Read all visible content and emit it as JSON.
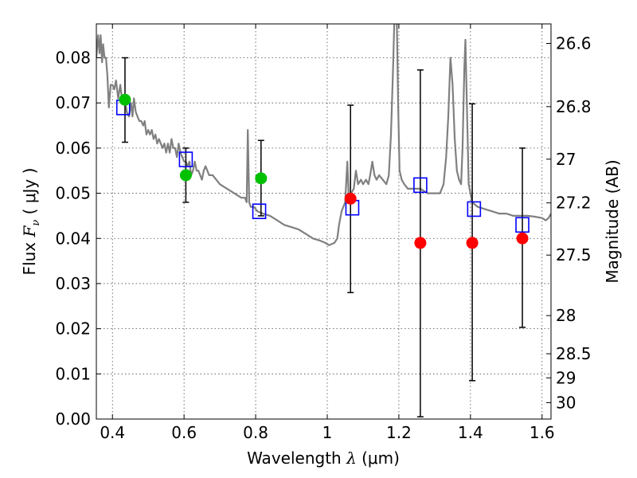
{
  "chart_data": {
    "type": "scatter",
    "xlabel": "Wavelength  λ (μm)",
    "ylabel": "Flux  F_ν ( μJy )",
    "ylabel_parts": {
      "main": "Flux  ",
      "symbol": "F",
      "sub": "ν",
      "unit": "  ( μJy )"
    },
    "xlabel_parts": {
      "main": "Wavelength  ",
      "symbol": "λ",
      "unit": " (μm)"
    },
    "y2label": "Magnitude (AB)",
    "xlim": [
      0.355,
      1.625
    ],
    "ylim": [
      0.0,
      0.0875
    ],
    "grid": true,
    "xticks": [
      0.4,
      0.6,
      0.8,
      1.0,
      1.2,
      1.4,
      1.6
    ],
    "xtick_labels": [
      "0.4",
      "0.6",
      "0.8",
      "1",
      "1.2",
      "1.4",
      "1.6"
    ],
    "yticks": [
      0.0,
      0.01,
      0.02,
      0.03,
      0.04,
      0.05,
      0.06,
      0.07,
      0.08
    ],
    "ytick_labels": [
      "0.00",
      "0.01",
      "0.02",
      "0.03",
      "0.04",
      "0.05",
      "0.06",
      "0.07",
      "0.08"
    ],
    "y2ticks": [
      {
        "mag": 26.6,
        "label": "26.6"
      },
      {
        "mag": 26.8,
        "label": "26.8"
      },
      {
        "mag": 27.0,
        "label": "27"
      },
      {
        "mag": 27.2,
        "label": "27.2"
      },
      {
        "mag": 27.5,
        "label": "27.5"
      },
      {
        "mag": 28.0,
        "label": "28"
      },
      {
        "mag": 28.5,
        "label": "28.5"
      },
      {
        "mag": 29.0,
        "label": "29"
      },
      {
        "mag": 30.0,
        "label": "30"
      }
    ],
    "series": [
      {
        "kind": "line",
        "color": "#808080",
        "points": [
          [
            0.355,
            0.08
          ],
          [
            0.36,
            0.085
          ],
          [
            0.364,
            0.081
          ],
          [
            0.367,
            0.085
          ],
          [
            0.371,
            0.079
          ],
          [
            0.374,
            0.083
          ],
          [
            0.378,
            0.08
          ],
          [
            0.382,
            0.08
          ],
          [
            0.386,
            0.076
          ],
          [
            0.39,
            0.069
          ],
          [
            0.395,
            0.074
          ],
          [
            0.4,
            0.074
          ],
          [
            0.405,
            0.073
          ],
          [
            0.41,
            0.075
          ],
          [
            0.416,
            0.071
          ],
          [
            0.422,
            0.074
          ],
          [
            0.428,
            0.07
          ],
          [
            0.435,
            0.071
          ],
          [
            0.44,
            0.068
          ],
          [
            0.446,
            0.067
          ],
          [
            0.452,
            0.07
          ],
          [
            0.456,
            0.067
          ],
          [
            0.46,
            0.071
          ],
          [
            0.465,
            0.068
          ],
          [
            0.47,
            0.067
          ],
          [
            0.475,
            0.066
          ],
          [
            0.48,
            0.066
          ],
          [
            0.486,
            0.065
          ],
          [
            0.49,
            0.066
          ],
          [
            0.495,
            0.063
          ],
          [
            0.5,
            0.064
          ],
          [
            0.505,
            0.063
          ],
          [
            0.51,
            0.064
          ],
          [
            0.515,
            0.062
          ],
          [
            0.52,
            0.063
          ],
          [
            0.525,
            0.061
          ],
          [
            0.53,
            0.062
          ],
          [
            0.535,
            0.061
          ],
          [
            0.54,
            0.06
          ],
          [
            0.545,
            0.061
          ],
          [
            0.55,
            0.059
          ],
          [
            0.555,
            0.061
          ],
          [
            0.56,
            0.059
          ],
          [
            0.565,
            0.062
          ],
          [
            0.57,
            0.06
          ],
          [
            0.575,
            0.06
          ],
          [
            0.58,
            0.058
          ],
          [
            0.585,
            0.061
          ],
          [
            0.59,
            0.059
          ],
          [
            0.595,
            0.058
          ],
          [
            0.6,
            0.057
          ],
          [
            0.605,
            0.057
          ],
          [
            0.61,
            0.056
          ],
          [
            0.615,
            0.057
          ],
          [
            0.62,
            0.054
          ],
          [
            0.625,
            0.055
          ],
          [
            0.63,
            0.057
          ],
          [
            0.635,
            0.055
          ],
          [
            0.64,
            0.055
          ],
          [
            0.645,
            0.054
          ],
          [
            0.65,
            0.053
          ],
          [
            0.655,
            0.055
          ],
          [
            0.66,
            0.056
          ],
          [
            0.665,
            0.055
          ],
          [
            0.67,
            0.054
          ],
          [
            0.68,
            0.054
          ],
          [
            0.69,
            0.053
          ],
          [
            0.7,
            0.052
          ],
          [
            0.71,
            0.0515
          ],
          [
            0.72,
            0.051
          ],
          [
            0.73,
            0.0505
          ],
          [
            0.74,
            0.05
          ],
          [
            0.75,
            0.0495
          ],
          [
            0.76,
            0.049
          ],
          [
            0.77,
            0.049
          ],
          [
            0.775,
            0.048
          ],
          [
            0.778,
            0.064
          ],
          [
            0.782,
            0.048
          ],
          [
            0.786,
            0.047
          ],
          [
            0.795,
            0.047
          ],
          [
            0.805,
            0.046
          ],
          [
            0.82,
            0.0455
          ],
          [
            0.84,
            0.045
          ],
          [
            0.86,
            0.044
          ],
          [
            0.88,
            0.043
          ],
          [
            0.9,
            0.0425
          ],
          [
            0.92,
            0.042
          ],
          [
            0.94,
            0.041
          ],
          [
            0.96,
            0.04
          ],
          [
            0.98,
            0.0395
          ],
          [
            0.995,
            0.039
          ],
          [
            1.005,
            0.0385
          ],
          [
            1.02,
            0.039
          ],
          [
            1.028,
            0.04
          ],
          [
            1.033,
            0.043
          ],
          [
            1.04,
            0.046
          ],
          [
            1.045,
            0.047
          ],
          [
            1.05,
            0.048
          ],
          [
            1.056,
            0.057
          ],
          [
            1.06,
            0.049
          ],
          [
            1.067,
            0.05
          ],
          [
            1.074,
            0.051
          ],
          [
            1.08,
            0.055
          ],
          [
            1.086,
            0.052
          ],
          [
            1.094,
            0.053
          ],
          [
            1.1,
            0.052
          ],
          [
            1.108,
            0.053
          ],
          [
            1.115,
            0.052
          ],
          [
            1.12,
            0.054
          ],
          [
            1.126,
            0.057
          ],
          [
            1.132,
            0.054
          ],
          [
            1.138,
            0.053
          ],
          [
            1.145,
            0.054
          ],
          [
            1.155,
            0.053
          ],
          [
            1.165,
            0.052
          ],
          [
            1.172,
            0.054
          ],
          [
            1.178,
            0.063
          ],
          [
            1.184,
            0.078
          ],
          [
            1.188,
            0.09
          ],
          [
            1.194,
            0.09
          ],
          [
            1.198,
            0.07
          ],
          [
            1.202,
            0.055
          ],
          [
            1.208,
            0.053
          ],
          [
            1.215,
            0.052
          ],
          [
            1.225,
            0.051
          ],
          [
            1.24,
            0.051
          ],
          [
            1.26,
            0.051
          ],
          [
            1.28,
            0.05
          ],
          [
            1.3,
            0.05
          ],
          [
            1.315,
            0.05
          ],
          [
            1.325,
            0.052
          ],
          [
            1.332,
            0.058
          ],
          [
            1.338,
            0.067
          ],
          [
            1.344,
            0.08
          ],
          [
            1.35,
            0.074
          ],
          [
            1.356,
            0.062
          ],
          [
            1.362,
            0.055
          ],
          [
            1.368,
            0.053
          ],
          [
            1.374,
            0.052
          ],
          [
            1.378,
            0.06
          ],
          [
            1.383,
            0.078
          ],
          [
            1.386,
            0.084
          ],
          [
            1.39,
            0.07
          ],
          [
            1.395,
            0.052
          ],
          [
            1.405,
            0.048
          ],
          [
            1.42,
            0.047
          ],
          [
            1.44,
            0.0465
          ],
          [
            1.46,
            0.046
          ],
          [
            1.48,
            0.0455
          ],
          [
            1.5,
            0.0455
          ],
          [
            1.52,
            0.045
          ],
          [
            1.54,
            0.045
          ],
          [
            1.56,
            0.045
          ],
          [
            1.58,
            0.0448
          ],
          [
            1.6,
            0.0445
          ],
          [
            1.61,
            0.044
          ],
          [
            1.618,
            0.0445
          ],
          [
            1.625,
            0.0455
          ]
        ]
      },
      {
        "kind": "boxes",
        "color": "#0000ff",
        "points": [
          [
            0.43,
            0.069
          ],
          [
            0.605,
            0.0575
          ],
          [
            0.81,
            0.046
          ],
          [
            1.07,
            0.0468
          ],
          [
            1.26,
            0.0518
          ],
          [
            1.41,
            0.0465
          ],
          [
            1.545,
            0.043
          ]
        ]
      },
      {
        "kind": "circles",
        "color": "#00c000",
        "points": [
          [
            0.435,
            0.0707
          ],
          [
            0.605,
            0.054
          ],
          [
            0.815,
            0.0533
          ]
        ]
      },
      {
        "kind": "circles",
        "color": "#ff0000",
        "points": [
          [
            1.065,
            0.0488
          ],
          [
            1.26,
            0.039
          ],
          [
            1.405,
            0.039
          ],
          [
            1.545,
            0.04
          ]
        ]
      },
      {
        "kind": "errorbars",
        "color": "#000000",
        "bars": [
          {
            "x": 0.435,
            "lo": 0.0613,
            "hi": 0.08
          },
          {
            "x": 0.605,
            "lo": 0.048,
            "hi": 0.06
          },
          {
            "x": 0.815,
            "lo": 0.045,
            "hi": 0.0617
          },
          {
            "x": 1.065,
            "lo": 0.028,
            "hi": 0.0695
          },
          {
            "x": 1.26,
            "lo": 0.0005,
            "hi": 0.0773
          },
          {
            "x": 1.405,
            "lo": 0.0085,
            "hi": 0.0698
          },
          {
            "x": 1.545,
            "lo": 0.0203,
            "hi": 0.06
          }
        ]
      }
    ]
  }
}
